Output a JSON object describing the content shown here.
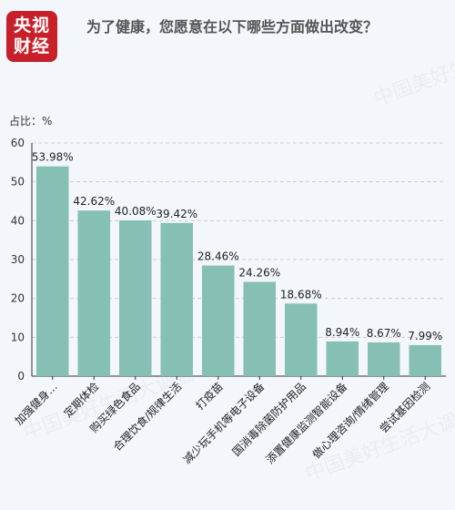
{
  "header": {
    "logo_text": "央视财经",
    "title": "为了健康，您愿意在以下哪些方面做出改变？"
  },
  "unit_label": "占比：%",
  "watermark": "中国美好生活大调查",
  "colors": {
    "bar": "#86bfb4",
    "axis": "#333333",
    "grid": "#cccccc"
  },
  "chart_data": {
    "type": "bar",
    "title": "为了健康，您愿意在以下哪些方面做出改变？",
    "ylabel": "占比：%",
    "ylim": [
      0,
      60
    ],
    "yticks": [
      0,
      10,
      20,
      30,
      40,
      50,
      60
    ],
    "grid": true,
    "categories": [
      "加强健身…",
      "定期体检",
      "购买绿色食品",
      "合理饮食/规律生活",
      "打疫苗",
      "减少玩手机等电子设备",
      "国消毒除菌防护用品",
      "添置健康监测智能设备",
      "做心理咨询/情绪管理",
      "尝试基因检测"
    ],
    "values": [
      53.98,
      42.62,
      40.08,
      39.42,
      28.46,
      24.26,
      18.68,
      8.94,
      8.67,
      7.99
    ],
    "value_labels": [
      "53.98%",
      "42.62%",
      "40.08%",
      "39.42%",
      "28.46%",
      "24.26%",
      "18.68%",
      "8.94%",
      "8.67%",
      "7.99%"
    ]
  }
}
